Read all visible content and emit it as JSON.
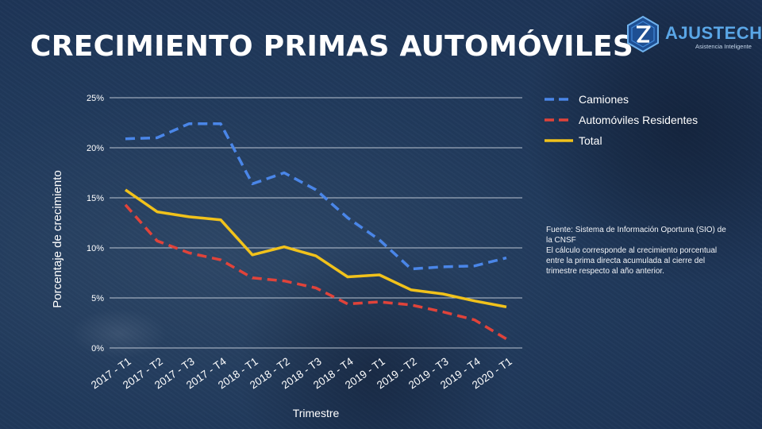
{
  "slide": {
    "title": "CRECIMIENTO PRIMAS AUTOMÓVILES"
  },
  "logo": {
    "name": "AJUSTECH",
    "tagline": "Asistencia Inteligente"
  },
  "note": {
    "source": "Fuente: Sistema de Información Oportuna (SIO) de la CNSF",
    "description": "El cálculo corresponde al crecimiento porcentual entre la prima directa acumulada al cierre del trimestre respecto al año anterior."
  },
  "chart_data": {
    "type": "line",
    "title": "",
    "xlabel": "Trimestre",
    "ylabel": "Porcentaje de crecimiento",
    "ylim": [
      0,
      25
    ],
    "yticks": [
      "0%",
      "5%",
      "10%",
      "15%",
      "20%",
      "25%"
    ],
    "grid": true,
    "legend_position": "top-right",
    "categories": [
      "2017 - T1",
      "2017 - T2",
      "2017 - T3",
      "2017 - T4",
      "2018 - T1",
      "2018 - T2",
      "2018 - T3",
      "2018 - T4",
      "2019 - T1",
      "2019 - T2",
      "2019 - T3",
      "2019 - T4",
      "2020 - T1"
    ],
    "series": [
      {
        "name": "Camiones",
        "color": "#4a86e8",
        "dash": "dashed",
        "values": [
          20.9,
          21.0,
          22.4,
          22.4,
          16.4,
          17.5,
          15.8,
          13.0,
          10.8,
          7.9,
          8.1,
          8.2,
          9.0
        ]
      },
      {
        "name": "Automóviles Residentes",
        "color": "#e0433a",
        "dash": "dashed",
        "values": [
          14.3,
          10.7,
          9.5,
          8.8,
          7.0,
          6.7,
          6.0,
          4.4,
          4.6,
          4.3,
          3.6,
          2.8,
          0.9
        ]
      },
      {
        "name": "Total",
        "color": "#f1c21b",
        "dash": "solid",
        "values": [
          15.8,
          13.6,
          13.1,
          12.8,
          9.3,
          10.1,
          9.2,
          7.1,
          7.3,
          5.8,
          5.4,
          4.7,
          4.1
        ]
      }
    ]
  }
}
